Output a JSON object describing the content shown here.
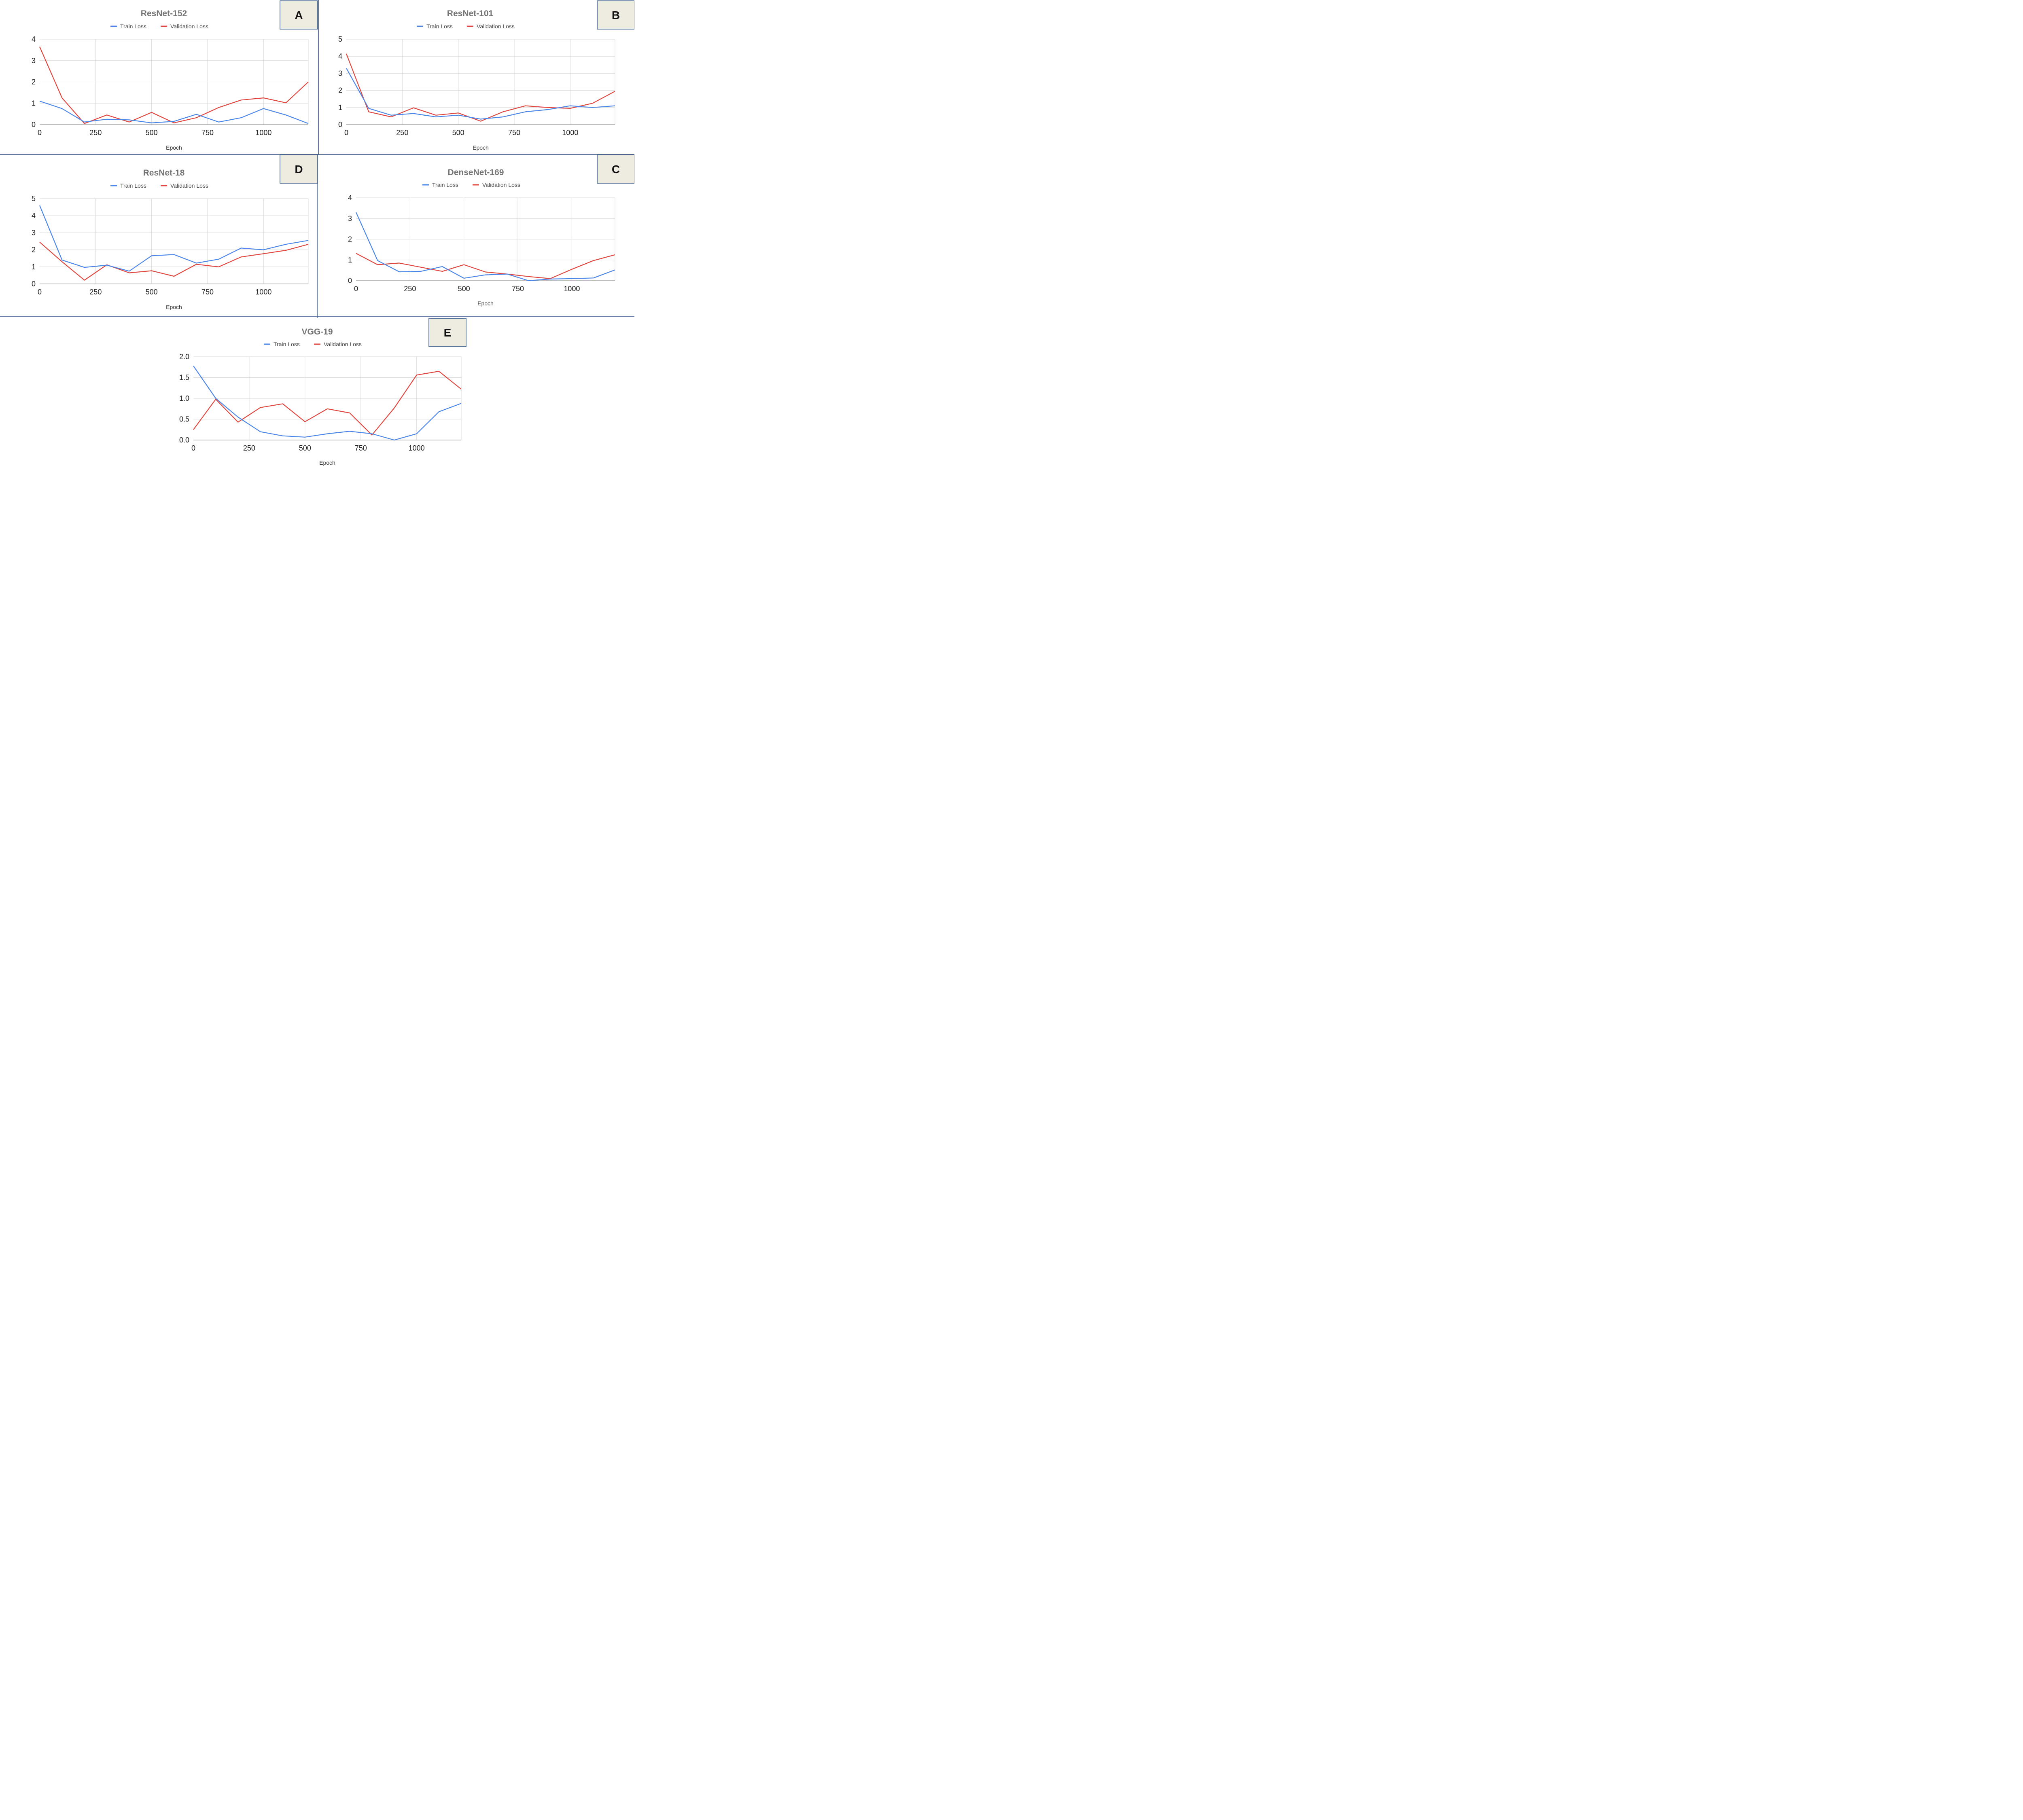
{
  "colors": {
    "train": "#4a86e8",
    "validation": "#e0453e",
    "grid": "#d9d9d9",
    "axis": "#aaaaaa",
    "title": "#757575",
    "divider": "#2f4f7f",
    "badge_fill": "#eeece1",
    "badge_border": "#2f4f7f"
  },
  "chart_data": [
    {
      "panel_label": "A",
      "type": "line",
      "title": "ResNet-152",
      "xlabel": "Epoch",
      "ylabel": "",
      "x_ticks": [
        "0",
        "250",
        "500",
        "750",
        "1000"
      ],
      "x_tick_values": [
        0,
        250,
        500,
        750,
        1000
      ],
      "y_ticks": [
        "0",
        "1",
        "2",
        "3",
        "4"
      ],
      "y_tick_values": [
        0,
        1,
        2,
        3,
        4
      ],
      "xlim": [
        0,
        1200
      ],
      "ylim": [
        0,
        4
      ],
      "legend": [
        "Train Loss",
        "Validation Loss"
      ],
      "x": [
        0,
        100,
        200,
        300,
        400,
        500,
        600,
        700,
        800,
        900,
        1000,
        1100,
        1200
      ],
      "series": [
        {
          "name": "Train Loss",
          "values": [
            1.1,
            0.75,
            0.12,
            0.25,
            0.22,
            0.08,
            0.15,
            0.48,
            0.12,
            0.32,
            0.75,
            0.45,
            0.05
          ]
        },
        {
          "name": "Validation Loss",
          "values": [
            3.65,
            1.25,
            0.05,
            0.45,
            0.12,
            0.57,
            0.08,
            0.32,
            0.8,
            1.15,
            1.25,
            1.02,
            2.0
          ]
        }
      ]
    },
    {
      "panel_label": "B",
      "type": "line",
      "title": "ResNet-101",
      "xlabel": "Epoch",
      "ylabel": "",
      "x_ticks": [
        "0",
        "250",
        "500",
        "750",
        "1000"
      ],
      "x_tick_values": [
        0,
        250,
        500,
        750,
        1000
      ],
      "y_ticks": [
        "0",
        "1",
        "2",
        "3",
        "4",
        "5"
      ],
      "y_tick_values": [
        0,
        1,
        2,
        3,
        4,
        5
      ],
      "xlim": [
        0,
        1200
      ],
      "ylim": [
        0,
        5
      ],
      "legend": [
        "Train Loss",
        "Validation Loss"
      ],
      "x": [
        0,
        100,
        200,
        300,
        400,
        500,
        600,
        700,
        800,
        900,
        1000,
        1100,
        1200
      ],
      "series": [
        {
          "name": "Train Loss",
          "values": [
            3.3,
            0.95,
            0.55,
            0.65,
            0.45,
            0.55,
            0.32,
            0.45,
            0.75,
            0.88,
            1.1,
            1.0,
            1.1
          ]
        },
        {
          "name": "Validation Loss",
          "values": [
            4.15,
            0.75,
            0.45,
            0.98,
            0.55,
            0.68,
            0.2,
            0.75,
            1.1,
            1.0,
            0.95,
            1.25,
            1.95
          ]
        }
      ]
    },
    {
      "panel_label": "D",
      "type": "line",
      "title": "ResNet-18",
      "xlabel": "Epoch",
      "ylabel": "",
      "x_ticks": [
        "0",
        "250",
        "500",
        "750",
        "1000"
      ],
      "x_tick_values": [
        0,
        250,
        500,
        750,
        1000
      ],
      "y_ticks": [
        "0",
        "1",
        "2",
        "3",
        "4",
        "5"
      ],
      "y_tick_values": [
        0,
        1,
        2,
        3,
        4,
        5
      ],
      "xlim": [
        0,
        1200
      ],
      "ylim": [
        0,
        5
      ],
      "legend": [
        "Train Loss",
        "Validation Loss"
      ],
      "x": [
        0,
        100,
        200,
        300,
        400,
        500,
        600,
        700,
        800,
        900,
        1000,
        1100,
        1200
      ],
      "series": [
        {
          "name": "Train Loss",
          "values": [
            4.6,
            1.4,
            0.97,
            1.1,
            0.75,
            1.65,
            1.72,
            1.22,
            1.45,
            2.1,
            2.0,
            2.32,
            2.55
          ]
        },
        {
          "name": "Validation Loss",
          "values": [
            2.45,
            1.3,
            0.22,
            1.12,
            0.65,
            0.77,
            0.45,
            1.15,
            1.0,
            1.58,
            1.77,
            1.97,
            2.32
          ]
        }
      ]
    },
    {
      "panel_label": "C",
      "type": "line",
      "title": "DenseNet-169",
      "xlabel": "Epoch",
      "ylabel": "",
      "x_ticks": [
        "0",
        "250",
        "500",
        "750",
        "1000"
      ],
      "x_tick_values": [
        0,
        250,
        500,
        750,
        1000
      ],
      "y_ticks": [
        "0",
        "1",
        "2",
        "3",
        "4"
      ],
      "y_tick_values": [
        0,
        1,
        2,
        3,
        4
      ],
      "xlim": [
        0,
        1200
      ],
      "ylim": [
        0,
        4
      ],
      "legend": [
        "Train Loss",
        "Validation Loss"
      ],
      "x": [
        0,
        100,
        200,
        300,
        400,
        500,
        600,
        700,
        800,
        900,
        1000,
        1100,
        1200
      ],
      "series": [
        {
          "name": "Train Loss",
          "values": [
            3.3,
            0.97,
            0.43,
            0.45,
            0.68,
            0.12,
            0.28,
            0.32,
            0.0,
            0.08,
            0.1,
            0.13,
            0.52
          ]
        },
        {
          "name": "Validation Loss",
          "values": [
            1.32,
            0.77,
            0.85,
            0.65,
            0.45,
            0.77,
            0.42,
            0.32,
            0.2,
            0.1,
            0.55,
            0.97,
            1.25
          ]
        }
      ]
    },
    {
      "panel_label": "E",
      "type": "line",
      "title": "VGG-19",
      "xlabel": "Epoch",
      "ylabel": "",
      "x_ticks": [
        "0",
        "250",
        "500",
        "750",
        "1000"
      ],
      "x_tick_values": [
        0,
        250,
        500,
        750,
        1000
      ],
      "y_ticks": [
        "0.0",
        "0.5",
        "1.0",
        "1.5",
        "2.0"
      ],
      "y_tick_values": [
        0,
        0.5,
        1.0,
        1.5,
        2.0
      ],
      "xlim": [
        0,
        1200
      ],
      "ylim": [
        0,
        2
      ],
      "legend": [
        "Train Loss",
        "Validation Loss"
      ],
      "x": [
        0,
        100,
        200,
        300,
        400,
        500,
        600,
        700,
        800,
        900,
        1000,
        1100,
        1200
      ],
      "series": [
        {
          "name": "Train Loss",
          "values": [
            1.78,
            1.0,
            0.55,
            0.2,
            0.1,
            0.07,
            0.15,
            0.21,
            0.15,
            0.0,
            0.15,
            0.68,
            0.88
          ]
        },
        {
          "name": "Validation Loss",
          "values": [
            0.25,
            0.98,
            0.43,
            0.78,
            0.87,
            0.44,
            0.75,
            0.65,
            0.12,
            0.77,
            1.56,
            1.65,
            1.22
          ]
        }
      ]
    }
  ]
}
